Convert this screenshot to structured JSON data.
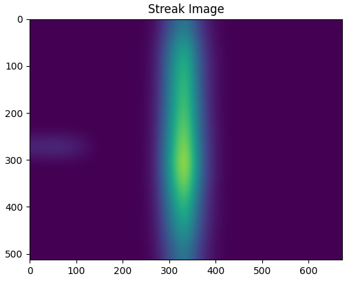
{
  "chart_data": {
    "type": "heatmap",
    "title": "Streak Image",
    "xlim": [
      0,
      672
    ],
    "ylim": [
      512,
      0
    ],
    "xticks": [
      0,
      100,
      200,
      300,
      400,
      500,
      600
    ],
    "yticks": [
      0,
      100,
      200,
      300,
      400,
      500
    ],
    "cells": [
      [
        0.08,
        0.08,
        0.08,
        0.08,
        0.08,
        0.08,
        0.08,
        0.08,
        0.11,
        0.31,
        0.47,
        0.2,
        0.1,
        0.08,
        0.08,
        0.08,
        0.08,
        0.08,
        0.08,
        0.08,
        0.08
      ],
      [
        0.08,
        0.08,
        0.08,
        0.08,
        0.08,
        0.08,
        0.08,
        0.08,
        0.12,
        0.39,
        0.6,
        0.24,
        0.1,
        0.08,
        0.08,
        0.08,
        0.08,
        0.08,
        0.08,
        0.08,
        0.08
      ],
      [
        0.08,
        0.08,
        0.08,
        0.08,
        0.08,
        0.08,
        0.08,
        0.08,
        0.13,
        0.44,
        0.69,
        0.27,
        0.11,
        0.08,
        0.08,
        0.08,
        0.08,
        0.08,
        0.08,
        0.08,
        0.08
      ],
      [
        0.08,
        0.08,
        0.08,
        0.08,
        0.08,
        0.08,
        0.08,
        0.08,
        0.13,
        0.47,
        0.73,
        0.28,
        0.11,
        0.08,
        0.08,
        0.08,
        0.08,
        0.08,
        0.08,
        0.08,
        0.08
      ],
      [
        0.08,
        0.08,
        0.08,
        0.08,
        0.08,
        0.08,
        0.08,
        0.08,
        0.13,
        0.49,
        0.76,
        0.29,
        0.11,
        0.08,
        0.08,
        0.08,
        0.08,
        0.08,
        0.08,
        0.08,
        0.08
      ],
      [
        0.08,
        0.08,
        0.08,
        0.08,
        0.08,
        0.08,
        0.08,
        0.08,
        0.14,
        0.5,
        0.78,
        0.3,
        0.11,
        0.08,
        0.08,
        0.08,
        0.08,
        0.08,
        0.08,
        0.08,
        0.08
      ],
      [
        0.08,
        0.08,
        0.08,
        0.08,
        0.08,
        0.08,
        0.08,
        0.08,
        0.14,
        0.52,
        0.82,
        0.31,
        0.11,
        0.08,
        0.08,
        0.08,
        0.08,
        0.08,
        0.08,
        0.08,
        0.08
      ],
      [
        0.08,
        0.08,
        0.08,
        0.08,
        0.08,
        0.08,
        0.08,
        0.08,
        0.14,
        0.55,
        0.86,
        0.32,
        0.12,
        0.08,
        0.08,
        0.08,
        0.08,
        0.08,
        0.08,
        0.08,
        0.08
      ],
      [
        0.2,
        0.22,
        0.2,
        0.15,
        0.08,
        0.08,
        0.08,
        0.08,
        0.15,
        0.57,
        0.91,
        0.34,
        0.12,
        0.08,
        0.08,
        0.08,
        0.08,
        0.08,
        0.08,
        0.08,
        0.08
      ],
      [
        0.08,
        0.08,
        0.08,
        0.08,
        0.08,
        0.08,
        0.08,
        0.08,
        0.15,
        0.6,
        0.95,
        0.35,
        0.12,
        0.08,
        0.08,
        0.08,
        0.08,
        0.08,
        0.08,
        0.08,
        0.08
      ],
      [
        0.08,
        0.08,
        0.08,
        0.08,
        0.08,
        0.08,
        0.08,
        0.08,
        0.15,
        0.57,
        0.91,
        0.34,
        0.12,
        0.08,
        0.08,
        0.08,
        0.08,
        0.08,
        0.08,
        0.08,
        0.08
      ],
      [
        0.08,
        0.08,
        0.08,
        0.08,
        0.08,
        0.08,
        0.08,
        0.08,
        0.14,
        0.52,
        0.82,
        0.31,
        0.11,
        0.08,
        0.08,
        0.08,
        0.08,
        0.08,
        0.08,
        0.08,
        0.08
      ],
      [
        0.08,
        0.08,
        0.08,
        0.08,
        0.08,
        0.08,
        0.08,
        0.08,
        0.13,
        0.47,
        0.73,
        0.28,
        0.11,
        0.08,
        0.08,
        0.08,
        0.08,
        0.08,
        0.08,
        0.08,
        0.08
      ],
      [
        0.08,
        0.08,
        0.08,
        0.08,
        0.08,
        0.08,
        0.08,
        0.08,
        0.13,
        0.42,
        0.65,
        0.26,
        0.11,
        0.08,
        0.08,
        0.08,
        0.08,
        0.08,
        0.08,
        0.08,
        0.08
      ],
      [
        0.08,
        0.08,
        0.08,
        0.08,
        0.08,
        0.08,
        0.08,
        0.08,
        0.12,
        0.37,
        0.56,
        0.23,
        0.1,
        0.08,
        0.08,
        0.08,
        0.08,
        0.08,
        0.08,
        0.08,
        0.08
      ],
      [
        0.08,
        0.08,
        0.08,
        0.08,
        0.08,
        0.08,
        0.08,
        0.08,
        0.11,
        0.31,
        0.47,
        0.2,
        0.1,
        0.08,
        0.08,
        0.08,
        0.08,
        0.08,
        0.08,
        0.08,
        0.08
      ]
    ]
  }
}
